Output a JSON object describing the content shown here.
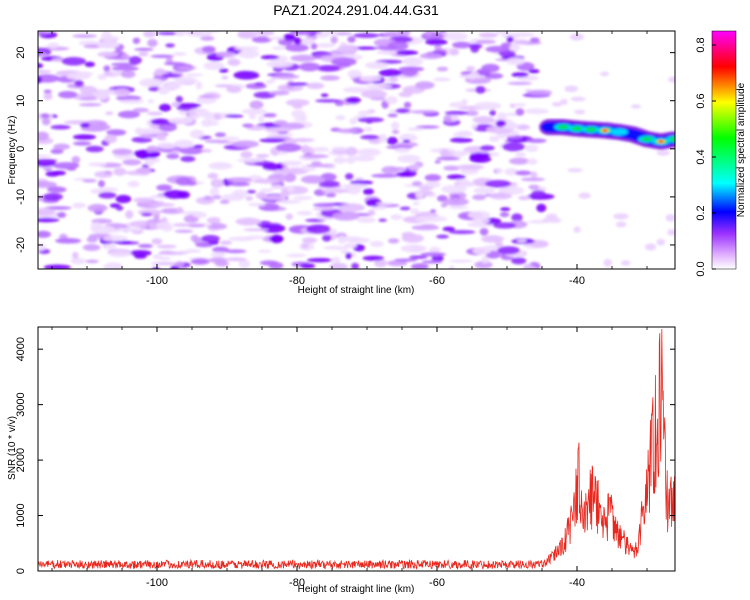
{
  "title": "PAZ1.2024.291.04.44.G31",
  "chart_data": [
    {
      "type": "heatmap",
      "xlabel": "Height of straight line (km)",
      "ylabel": "Frequency (Hz)",
      "xlim": [
        -117,
        -26
      ],
      "ylim": [
        -25,
        24.5
      ],
      "xticks": [
        -100,
        -80,
        -60,
        -40
      ],
      "yticks": [
        -20,
        -10,
        0,
        10,
        20
      ],
      "colorbar": {
        "label": "Normalized spectral amplitude",
        "range": [
          0.0,
          0.85
        ],
        "ticks": [
          0.0,
          0.2,
          0.4,
          0.6,
          0.8
        ],
        "colors": [
          "#ffffff",
          "#d9a6ff",
          "#8a2be2",
          "#0000ff",
          "#00ffff",
          "#00ff00",
          "#ffff00",
          "#ff0000",
          "#ff00ff"
        ]
      },
      "signal_track": [
        {
          "x": -44,
          "y": 4.5,
          "amp": 0.3
        },
        {
          "x": -42,
          "y": 4.5,
          "amp": 0.45
        },
        {
          "x": -40,
          "y": 4.2,
          "amp": 0.5
        },
        {
          "x": -38,
          "y": 4.0,
          "amp": 0.45
        },
        {
          "x": -36,
          "y": 3.8,
          "amp": 0.8
        },
        {
          "x": -34,
          "y": 3.5,
          "amp": 0.4
        },
        {
          "x": -32,
          "y": 3.0,
          "amp": 0.3
        },
        {
          "x": -30,
          "y": 2.0,
          "amp": 0.45
        },
        {
          "x": -28,
          "y": 1.5,
          "amp": 0.75
        },
        {
          "x": -26,
          "y": 2.0,
          "amp": 0.45
        }
      ]
    },
    {
      "type": "line",
      "xlabel": "Height of straight line (km)",
      "ylabel": "SNR (10 * v/v)",
      "xlim": [
        -117,
        -26
      ],
      "ylim": [
        0,
        4400
      ],
      "xticks": [
        -100,
        -80,
        -60,
        -40
      ],
      "yticks": [
        0,
        1000,
        2000,
        3000,
        4000
      ],
      "color": "#e8281e",
      "envelope": [
        {
          "x": -117,
          "y": 120
        },
        {
          "x": -45,
          "y": 120
        },
        {
          "x": -43.5,
          "y": 300
        },
        {
          "x": -42,
          "y": 600
        },
        {
          "x": -41,
          "y": 900
        },
        {
          "x": -40.3,
          "y": 1400
        },
        {
          "x": -39.8,
          "y": 2000
        },
        {
          "x": -39.5,
          "y": 1300
        },
        {
          "x": -39,
          "y": 1100
        },
        {
          "x": -38.5,
          "y": 1300
        },
        {
          "x": -38,
          "y": 1700
        },
        {
          "x": -37.5,
          "y": 1500
        },
        {
          "x": -37,
          "y": 1400
        },
        {
          "x": -36.5,
          "y": 1200
        },
        {
          "x": -36,
          "y": 1000
        },
        {
          "x": -35.3,
          "y": 1300
        },
        {
          "x": -34.8,
          "y": 1100
        },
        {
          "x": -34,
          "y": 800
        },
        {
          "x": -33,
          "y": 550
        },
        {
          "x": -32,
          "y": 400
        },
        {
          "x": -31.5,
          "y": 500
        },
        {
          "x": -31,
          "y": 900
        },
        {
          "x": -30.5,
          "y": 1400
        },
        {
          "x": -30,
          "y": 1700
        },
        {
          "x": -29.5,
          "y": 2500
        },
        {
          "x": -29,
          "y": 2900
        },
        {
          "x": -28.5,
          "y": 3200
        },
        {
          "x": -28,
          "y": 4000
        },
        {
          "x": -27.7,
          "y": 3200
        },
        {
          "x": -27.3,
          "y": 2000
        },
        {
          "x": -27,
          "y": 1200
        },
        {
          "x": -26.6,
          "y": 1600
        },
        {
          "x": -26,
          "y": 1700
        }
      ],
      "peaks": [
        {
          "x": -39.8,
          "y": 2380
        },
        {
          "x": -37.4,
          "y": 1780
        },
        {
          "x": -35.3,
          "y": 1400
        },
        {
          "x": -29.3,
          "y": 3000
        },
        {
          "x": -28.2,
          "y": 4300
        },
        {
          "x": -27.7,
          "y": 3300
        }
      ]
    }
  ]
}
